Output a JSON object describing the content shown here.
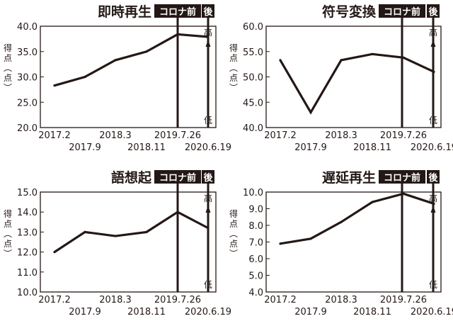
{
  "labels": {
    "before": "コロナ前",
    "after": "後",
    "ylabel": [
      "得",
      "点",
      "︵",
      "点",
      "︶"
    ],
    "high": "高",
    "low": "低"
  },
  "colors": {
    "line": "#231815",
    "frame": "#231815",
    "tag_bg": "#231815",
    "tag_text": "#ffffff",
    "bg": "#ffffff"
  },
  "chart_data": [
    {
      "type": "line",
      "title": "即時再生",
      "x": [
        "2017.2",
        "2017.9",
        "2018.3",
        "2018.11",
        "2019.7.26",
        "2020.6.19"
      ],
      "values": [
        28.3,
        30.0,
        33.3,
        35.0,
        38.4,
        37.9
      ],
      "ylim": [
        20.0,
        40.0
      ],
      "yticks": [
        "20.0",
        "25.0",
        "30.0",
        "35.0",
        "40.0"
      ],
      "grid": false
    },
    {
      "type": "line",
      "title": "符号変換",
      "x": [
        "2017.2",
        "2017.9",
        "2018.3",
        "2018.11",
        "2019.7.26",
        "2020.6.19"
      ],
      "values": [
        53.3,
        43.0,
        53.3,
        54.5,
        53.8,
        51.0
      ],
      "ylim": [
        40.0,
        60.0
      ],
      "yticks": [
        "40.0",
        "45.0",
        "50.0",
        "55.0",
        "60.0"
      ],
      "grid": false
    },
    {
      "type": "line",
      "title": "語想起",
      "x": [
        "2017.2",
        "2017.9",
        "2018.3",
        "2018.11",
        "2019.7.26",
        "2020.6.19"
      ],
      "values": [
        12.0,
        13.0,
        12.8,
        13.0,
        14.0,
        13.2
      ],
      "ylim": [
        10.0,
        15.0
      ],
      "yticks": [
        "10.0",
        "11.0",
        "12.0",
        "13.0",
        "14.0",
        "15.0"
      ],
      "grid": false
    },
    {
      "type": "line",
      "title": "遅延再生",
      "x": [
        "2017.2",
        "2017.9",
        "2018.3",
        "2018.11",
        "2019.7.26",
        "2020.6.19"
      ],
      "values": [
        6.9,
        7.2,
        8.2,
        9.4,
        9.9,
        9.3
      ],
      "ylim": [
        4.0,
        10.0
      ],
      "yticks": [
        "4.0",
        "5.0",
        "6.0",
        "7.0",
        "8.0",
        "9.0",
        "10.0"
      ],
      "grid": false
    }
  ]
}
